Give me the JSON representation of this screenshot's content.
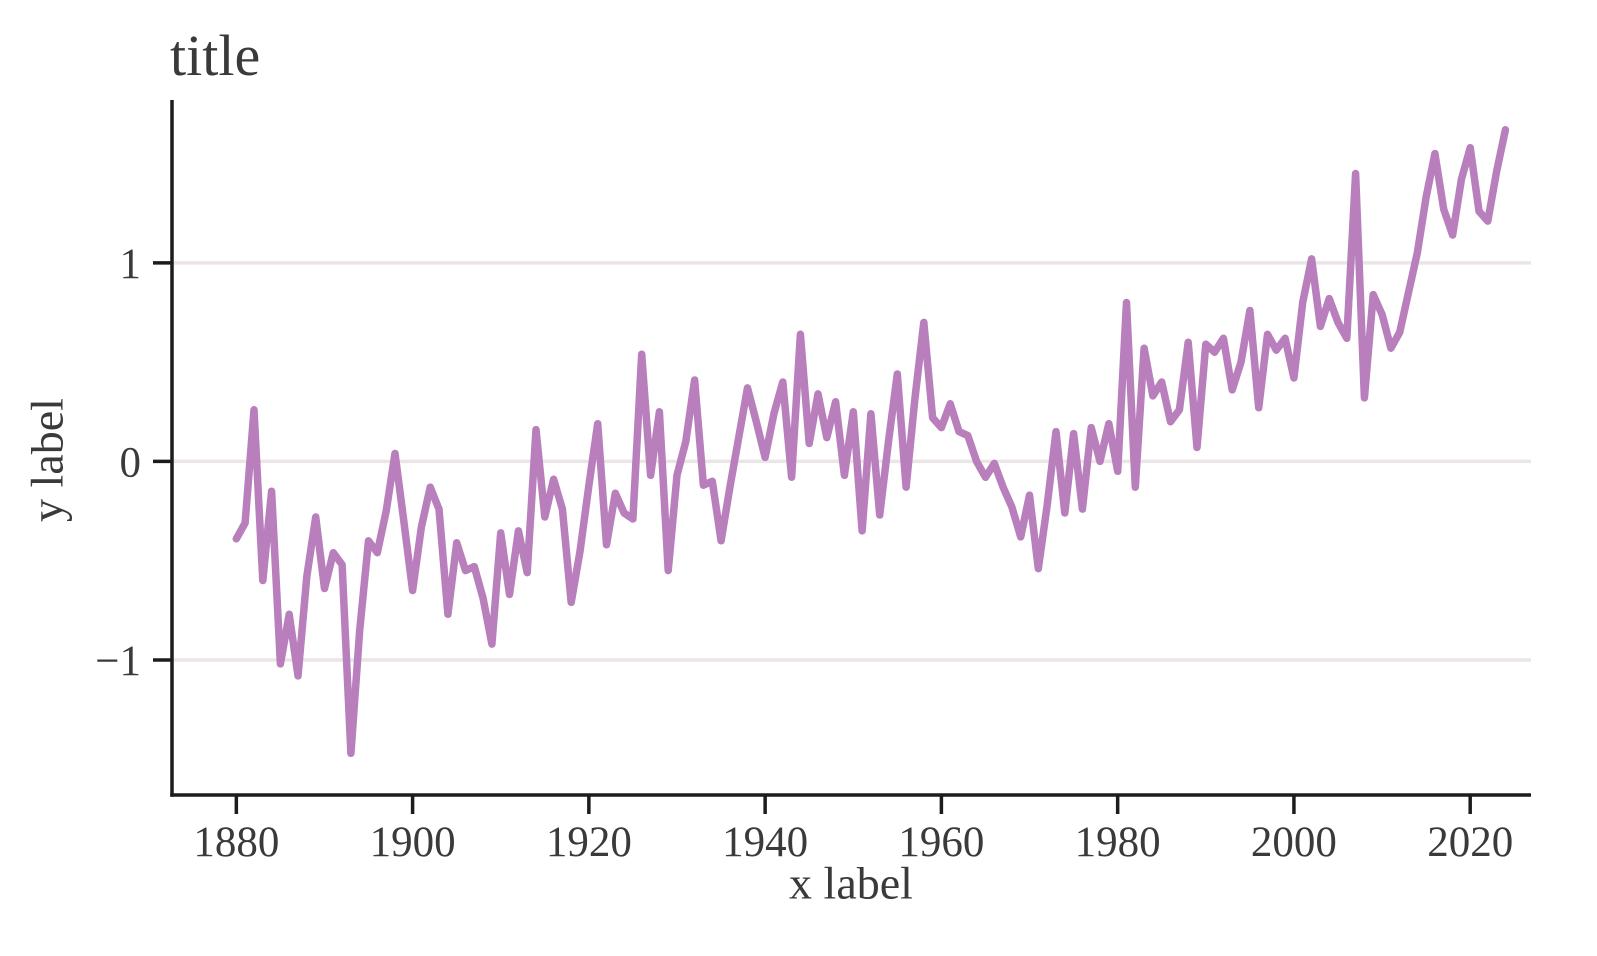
{
  "page": {
    "background_color": "#ffffff"
  },
  "chart": {
    "title": "title",
    "xlabel": "x label",
    "ylabel": "y label",
    "colors": {
      "line": "#b87fbc",
      "grid": "#ece5e5",
      "spine": "#1c1c1c",
      "text": "#3a3a3a"
    }
  },
  "chart_data": {
    "type": "line",
    "title": "title",
    "xlabel": "x label",
    "ylabel": "y label",
    "legend": null,
    "grid": "horizontal-only",
    "xlim": [
      1872.7,
      2026.9
    ],
    "ylim": [
      -1.68,
      1.82
    ],
    "xticks": [
      1880,
      1900,
      1920,
      1940,
      1960,
      1980,
      2000,
      2020
    ],
    "xticklabels": [
      "1880",
      "1900",
      "1920",
      "1940",
      "1960",
      "1980",
      "2000",
      "2020"
    ],
    "yticks": [
      -1,
      0,
      1
    ],
    "yticklabels": [
      "−1",
      "0",
      "1"
    ],
    "x": [
      1880,
      1881,
      1882,
      1883,
      1884,
      1885,
      1886,
      1887,
      1888,
      1889,
      1890,
      1891,
      1892,
      1893,
      1894,
      1895,
      1896,
      1897,
      1898,
      1899,
      1900,
      1901,
      1902,
      1903,
      1904,
      1905,
      1906,
      1907,
      1908,
      1909,
      1910,
      1911,
      1912,
      1913,
      1914,
      1915,
      1916,
      1917,
      1918,
      1919,
      1920,
      1921,
      1922,
      1923,
      1924,
      1925,
      1926,
      1927,
      1928,
      1929,
      1930,
      1931,
      1932,
      1933,
      1934,
      1935,
      1936,
      1937,
      1938,
      1939,
      1940,
      1941,
      1942,
      1943,
      1944,
      1945,
      1946,
      1947,
      1948,
      1949,
      1950,
      1951,
      1952,
      1953,
      1954,
      1955,
      1956,
      1957,
      1958,
      1959,
      1960,
      1961,
      1962,
      1963,
      1964,
      1965,
      1966,
      1967,
      1968,
      1969,
      1970,
      1971,
      1972,
      1973,
      1974,
      1975,
      1976,
      1977,
      1978,
      1979,
      1980,
      1981,
      1982,
      1983,
      1984,
      1985,
      1986,
      1987,
      1988,
      1989,
      1990,
      1991,
      1992,
      1993,
      1994,
      1995,
      1996,
      1997,
      1998,
      1999,
      2000,
      2001,
      2002,
      2003,
      2004,
      2005,
      2006,
      2007,
      2008,
      2009,
      2010,
      2011,
      2012,
      2013,
      2014,
      2015,
      2016,
      2017,
      2018,
      2019,
      2020,
      2021,
      2022,
      2023,
      2024
    ],
    "y": [
      -0.39,
      -0.31,
      0.26,
      -0.6,
      -0.15,
      -1.02,
      -0.77,
      -1.08,
      -0.58,
      -0.28,
      -0.64,
      -0.46,
      -0.52,
      -1.47,
      -0.85,
      -0.4,
      -0.46,
      -0.25,
      0.04,
      -0.3,
      -0.65,
      -0.33,
      -0.13,
      -0.24,
      -0.77,
      -0.41,
      -0.55,
      -0.53,
      -0.69,
      -0.92,
      -0.36,
      -0.67,
      -0.35,
      -0.56,
      0.16,
      -0.28,
      -0.09,
      -0.24,
      -0.71,
      -0.45,
      -0.12,
      0.19,
      -0.42,
      -0.16,
      -0.26,
      -0.29,
      0.54,
      -0.07,
      0.25,
      -0.55,
      -0.07,
      0.1,
      0.41,
      -0.12,
      -0.1,
      -0.4,
      -0.13,
      0.12,
      0.37,
      0.2,
      0.02,
      0.24,
      0.4,
      -0.08,
      0.64,
      0.09,
      0.34,
      0.12,
      0.3,
      -0.07,
      0.25,
      -0.35,
      0.24,
      -0.27,
      0.1,
      0.44,
      -0.13,
      0.32,
      0.7,
      0.22,
      0.17,
      0.29,
      0.15,
      0.13,
      0.0,
      -0.08,
      -0.01,
      -0.13,
      -0.23,
      -0.38,
      -0.17,
      -0.54,
      -0.22,
      0.15,
      -0.26,
      0.14,
      -0.24,
      0.17,
      0.0,
      0.19,
      -0.05,
      0.8,
      -0.13,
      0.57,
      0.33,
      0.4,
      0.2,
      0.26,
      0.6,
      0.07,
      0.59,
      0.55,
      0.62,
      0.36,
      0.5,
      0.76,
      0.27,
      0.64,
      0.56,
      0.62,
      0.42,
      0.8,
      1.02,
      0.68,
      0.82,
      0.7,
      0.62,
      1.45,
      0.32,
      0.84,
      0.74,
      0.57,
      0.65,
      0.85,
      1.05,
      1.33,
      1.55,
      1.27,
      1.14,
      1.42,
      1.58,
      1.26,
      1.21,
      1.46,
      1.67
    ]
  }
}
